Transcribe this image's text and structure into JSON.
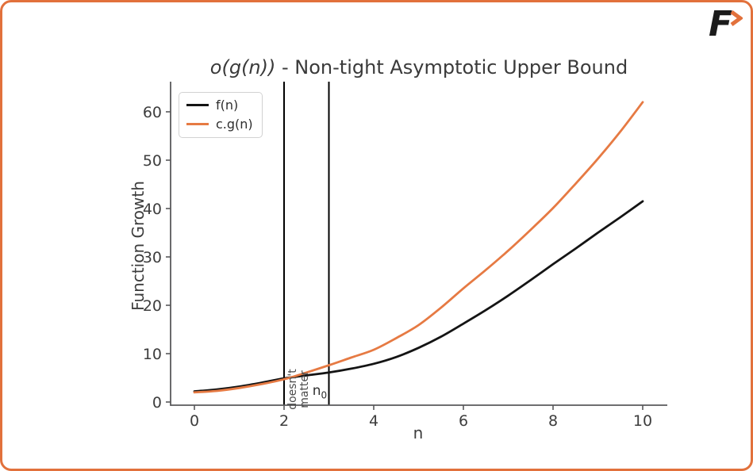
{
  "logo": {
    "letter": "F"
  },
  "colors": {
    "frame": "#e2713c",
    "curve_black": "#141414",
    "curve_orange": "#e67a43",
    "text": "#3d3d3d",
    "spine": "#59595b"
  },
  "chart_data": {
    "type": "line",
    "title": {
      "math": "o(g(n))",
      "rest": " - Non-tight Asymptotic Upper Bound"
    },
    "xlabel": "n",
    "ylabel": "Function Growth",
    "xlim": [
      0,
      10
    ],
    "ylim": [
      0,
      66
    ],
    "grid": false,
    "legend_position": "upper left",
    "xticks": [
      0,
      2,
      4,
      6,
      8,
      10
    ],
    "yticks": [
      0,
      10,
      20,
      30,
      40,
      50,
      60
    ],
    "x": [
      0,
      0.5,
      1,
      1.5,
      2,
      2.5,
      3,
      3.5,
      4,
      4.5,
      5,
      5.5,
      6,
      6.5,
      7,
      7.5,
      8,
      8.5,
      9,
      9.5,
      10
    ],
    "series": [
      {
        "name": "f(n)",
        "color": "#141414",
        "values": [
          2.2,
          2.6,
          3.2,
          4.0,
          4.9,
          5.5,
          6.1,
          6.9,
          7.9,
          9.3,
          11.2,
          13.5,
          16.2,
          19.0,
          22.0,
          25.2,
          28.5,
          31.7,
          35.0,
          38.2,
          41.5
        ]
      },
      {
        "name": "c.g(n)",
        "color": "#e67a43",
        "values": [
          2.0,
          2.3,
          2.9,
          3.7,
          4.7,
          6.1,
          7.6,
          9.2,
          10.8,
          13.2,
          15.9,
          19.5,
          23.5,
          27.3,
          31.3,
          35.6,
          40.1,
          45.1,
          50.3,
          55.9,
          62.0
        ]
      }
    ],
    "vlines": [
      {
        "x": 2,
        "color": "#000000"
      },
      {
        "x": 3,
        "color": "#000000"
      }
    ],
    "annotations": {
      "doesnt_matter": {
        "line1": "doesn't",
        "line2": "matter",
        "x": 2.33,
        "y": 2.6,
        "rotation": -90
      },
      "n0": {
        "base": "n",
        "sub": "0",
        "x": 2.81,
        "y": 2.3
      }
    }
  }
}
